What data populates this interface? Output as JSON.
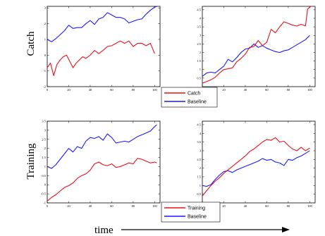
{
  "row_labels": [
    "Catch",
    "Training"
  ],
  "x_axis_label": "time",
  "colors": {
    "red": "#e8101a",
    "blue": "#1a1aff"
  },
  "chart_data": [
    {
      "type": "line",
      "row": 0,
      "col": 0,
      "xlim": [
        0,
        105
      ],
      "ylim": [
        -2,
        3.1
      ],
      "xticks": [
        0,
        20,
        40,
        60,
        80,
        100
      ],
      "yticks": [
        -2,
        -1,
        0,
        1,
        2,
        3
      ],
      "series": [
        {
          "name": "Baseline",
          "color": "blue",
          "x": [
            0,
            4,
            8,
            12,
            16,
            20,
            24,
            28,
            32,
            36,
            40,
            44,
            48,
            52,
            56,
            60,
            64,
            68,
            72,
            76,
            80,
            84,
            88,
            92,
            96,
            100,
            102
          ],
          "y": [
            1.0,
            0.85,
            1.05,
            1.3,
            1.55,
            1.9,
            1.7,
            1.75,
            1.75,
            2.0,
            2.2,
            1.95,
            2.3,
            2.4,
            2.7,
            2.55,
            2.4,
            2.4,
            2.3,
            2.05,
            2.15,
            2.25,
            2.3,
            2.6,
            2.85,
            3.05,
            3.1
          ]
        },
        {
          "name": "Catch",
          "color": "red",
          "x": [
            0,
            3,
            6,
            9,
            12,
            15,
            18,
            21,
            24,
            27,
            30,
            33,
            36,
            40,
            44,
            48,
            52,
            56,
            60,
            64,
            68,
            72,
            76,
            80,
            84,
            88,
            92,
            96,
            100
          ],
          "y": [
            -0.8,
            -0.5,
            -1.3,
            -0.6,
            -0.3,
            -0.1,
            0.0,
            -0.4,
            -0.8,
            -0.5,
            -0.3,
            -0.1,
            -0.2,
            0.0,
            0.3,
            0.1,
            0.3,
            0.55,
            0.6,
            0.75,
            0.9,
            0.75,
            0.9,
            0.55,
            0.75,
            0.75,
            0.6,
            0.75,
            0.1
          ]
        }
      ]
    },
    {
      "type": "line",
      "row": 0,
      "col": 1,
      "xlim": [
        0,
        105
      ],
      "ylim": [
        0,
        4.7
      ],
      "xticks": [
        0,
        20,
        40,
        60,
        80,
        100
      ],
      "yticks": [
        0.5,
        1,
        1.5,
        2,
        2.5,
        3,
        3.5,
        4,
        4.5
      ],
      "series": [
        {
          "name": "Baseline",
          "color": "blue",
          "x": [
            0,
            4,
            8,
            12,
            16,
            20,
            24,
            28,
            32,
            36,
            40,
            44,
            48,
            52,
            56,
            60,
            64,
            68,
            72,
            76,
            80,
            84,
            88,
            92,
            96,
            100
          ],
          "y": [
            0.6,
            0.8,
            0.85,
            0.8,
            1.0,
            1.2,
            1.6,
            1.45,
            1.7,
            2.0,
            2.2,
            2.25,
            2.5,
            2.3,
            2.4,
            2.25,
            2.15,
            2.05,
            2.0,
            2.1,
            2.15,
            2.3,
            2.45,
            2.6,
            2.75,
            3.0
          ]
        },
        {
          "name": "Catch",
          "color": "red",
          "x": [
            0,
            4,
            8,
            12,
            16,
            20,
            24,
            28,
            32,
            36,
            40,
            44,
            48,
            52,
            56,
            60,
            64,
            68,
            72,
            76,
            80,
            84,
            88,
            92,
            96,
            98,
            100,
            102
          ],
          "y": [
            0.2,
            0.3,
            0.4,
            0.55,
            0.8,
            1.0,
            1.05,
            1.1,
            1.45,
            1.65,
            1.9,
            2.3,
            2.35,
            2.7,
            2.4,
            2.6,
            3.35,
            3.15,
            3.5,
            3.8,
            3.7,
            3.6,
            3.55,
            3.65,
            3.55,
            4.55,
            4.65,
            4.75
          ]
        }
      ]
    },
    {
      "type": "line",
      "row": 1,
      "col": 0,
      "xlim": [
        0,
        105
      ],
      "ylim": [
        -1,
        3.5
      ],
      "xticks": [
        0,
        20,
        40,
        60,
        80,
        100
      ],
      "yticks": [
        -1,
        -0.5,
        0,
        0.5,
        1,
        1.5,
        2,
        2.5,
        3,
        3.5
      ],
      "series": [
        {
          "name": "Baseline",
          "color": "blue",
          "x": [
            0,
            4,
            8,
            12,
            16,
            20,
            24,
            28,
            32,
            36,
            40,
            44,
            48,
            52,
            56,
            60,
            64,
            68,
            72,
            76,
            80,
            84,
            88,
            92,
            96,
            100,
            102
          ],
          "y": [
            1.0,
            0.9,
            1.1,
            1.4,
            1.7,
            2.0,
            1.8,
            2.1,
            2.0,
            2.4,
            2.6,
            2.55,
            2.65,
            2.45,
            2.8,
            2.6,
            2.3,
            2.35,
            2.4,
            2.35,
            2.5,
            2.65,
            2.75,
            2.85,
            2.95,
            3.2,
            3.3
          ]
        },
        {
          "name": "Training",
          "color": "red",
          "x": [
            0,
            4,
            8,
            12,
            16,
            20,
            24,
            28,
            32,
            36,
            40,
            44,
            48,
            52,
            56,
            60,
            64,
            68,
            72,
            76,
            80,
            84,
            88,
            92,
            96,
            100,
            102
          ],
          "y": [
            -0.9,
            -0.7,
            -0.55,
            -0.35,
            -0.15,
            -0.05,
            0.1,
            0.35,
            0.5,
            0.6,
            0.8,
            1.15,
            1.25,
            1.1,
            1.05,
            1.15,
            0.95,
            1.0,
            1.1,
            1.2,
            1.15,
            1.45,
            1.4,
            1.3,
            1.2,
            1.25,
            1.2
          ]
        }
      ]
    },
    {
      "type": "line",
      "row": 1,
      "col": 1,
      "xlim": [
        0,
        105
      ],
      "ylim": [
        0,
        4.7
      ],
      "xticks": [
        0,
        20,
        40,
        60,
        80,
        100
      ],
      "yticks": [
        0.5,
        1,
        1.5,
        2,
        2.5,
        3,
        3.5,
        4,
        4.5
      ],
      "series": [
        {
          "name": "Baseline",
          "color": "blue",
          "x": [
            0,
            4,
            8,
            12,
            16,
            20,
            24,
            28,
            32,
            36,
            40,
            44,
            48,
            52,
            56,
            60,
            64,
            68,
            72,
            76,
            80,
            84,
            88,
            92,
            96,
            100
          ],
          "y": [
            1.0,
            0.95,
            1.05,
            1.35,
            1.6,
            1.8,
            1.85,
            1.75,
            1.9,
            2.0,
            2.1,
            2.2,
            2.3,
            2.4,
            2.55,
            2.45,
            2.5,
            2.35,
            2.3,
            2.15,
            2.5,
            2.45,
            2.6,
            2.7,
            2.85,
            3.0
          ]
        },
        {
          "name": "Training",
          "color": "red",
          "x": [
            0,
            4,
            8,
            12,
            16,
            20,
            24,
            28,
            32,
            36,
            40,
            44,
            48,
            52,
            56,
            60,
            64,
            68,
            72,
            76,
            80,
            84,
            88,
            92,
            96,
            100
          ],
          "y": [
            0.4,
            0.7,
            1.0,
            1.25,
            1.45,
            1.7,
            1.9,
            2.1,
            2.3,
            2.5,
            2.7,
            2.95,
            3.1,
            3.3,
            3.5,
            3.65,
            3.6,
            3.75,
            3.5,
            3.55,
            3.3,
            3.1,
            3.0,
            3.2,
            3.0,
            3.15
          ]
        }
      ]
    }
  ],
  "legends": [
    {
      "entries": [
        {
          "label": "Catch",
          "color": "red"
        },
        {
          "label": "Baseline",
          "color": "blue"
        }
      ]
    },
    {
      "entries": [
        {
          "label": "Training",
          "color": "red"
        },
        {
          "label": "Baseline",
          "color": "blue"
        }
      ]
    }
  ]
}
